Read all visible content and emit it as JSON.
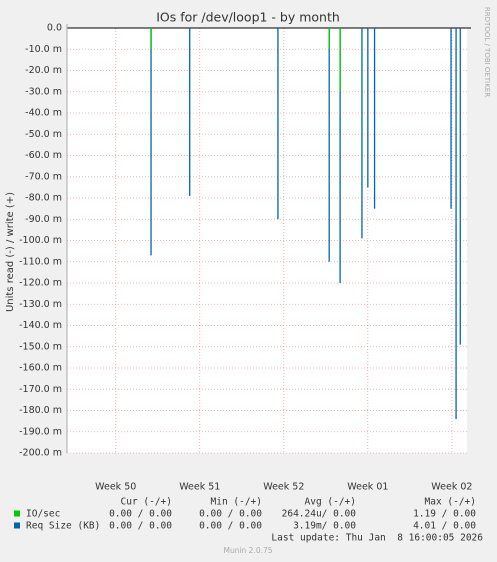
{
  "chart_data": {
    "type": "line",
    "title": "IOs for /dev/loop1 - by month",
    "ylabel": "Units read (-) / write (+)",
    "side_label": "RRDTOOL / TOBI OETIKER",
    "xlim": [
      49.42,
      54.18
    ],
    "xticks": [
      {
        "value": 50,
        "label": "Week 50"
      },
      {
        "value": 51,
        "label": "Week 51"
      },
      {
        "value": 52,
        "label": "Week 52"
      },
      {
        "value": 53,
        "label": "Week 01"
      },
      {
        "value": 54,
        "label": "Week 02"
      }
    ],
    "ylim": [
      -0.2,
      0
    ],
    "yticks": [
      {
        "value": 0,
        "label": "0.0"
      },
      {
        "value": -0.01,
        "label": "-10.0 m"
      },
      {
        "value": -0.02,
        "label": "-20.0 m"
      },
      {
        "value": -0.03,
        "label": "-30.0 m"
      },
      {
        "value": -0.04,
        "label": "-40.0 m"
      },
      {
        "value": -0.05,
        "label": "-50.0 m"
      },
      {
        "value": -0.06,
        "label": "-60.0 m"
      },
      {
        "value": -0.07,
        "label": "-70.0 m"
      },
      {
        "value": -0.08,
        "label": "-80.0 m"
      },
      {
        "value": -0.09,
        "label": "-90.0 m"
      },
      {
        "value": -0.1,
        "label": "-100.0 m"
      },
      {
        "value": -0.11,
        "label": "-110.0 m"
      },
      {
        "value": -0.12,
        "label": "-120.0 m"
      },
      {
        "value": -0.13,
        "label": "-130.0 m"
      },
      {
        "value": -0.14,
        "label": "-140.0 m"
      },
      {
        "value": -0.15,
        "label": "-150.0 m"
      },
      {
        "value": -0.16,
        "label": "-160.0 m"
      },
      {
        "value": -0.17,
        "label": "-170.0 m"
      },
      {
        "value": -0.18,
        "label": "-180.0 m"
      },
      {
        "value": -0.19,
        "label": "-190.0 m"
      },
      {
        "value": -0.2,
        "label": "-200.0 m"
      }
    ],
    "grid": true,
    "stat_headers": [
      "Cur (-/+)",
      "Min (-/+)",
      "Avg (-/+)",
      "Max (-/+)"
    ],
    "series": [
      {
        "name": "IO/sec",
        "color": "#00cc00",
        "x": [
          50.42,
          52.54,
          52.67
        ],
        "values": [
          -0.01,
          -0.01,
          -0.03
        ],
        "stats": [
          "0.00 / 0.00",
          "0.00 / 0.00",
          "264.24u/ 0.00",
          "1.19 / 0.00"
        ]
      },
      {
        "name": "Req Size (KB)",
        "color": "#0066b3",
        "x": [
          50.42,
          50.88,
          51.93,
          52.54,
          52.67,
          52.93,
          53.0,
          53.08,
          53.99,
          54.05,
          54.1
        ],
        "values": [
          -0.107,
          -0.079,
          -0.09,
          -0.11,
          -0.12,
          -0.099,
          -0.075,
          -0.085,
          -0.085,
          -0.184,
          -0.149
        ],
        "stats": [
          "0.00 / 0.00",
          "0.00 / 0.00",
          "3.19m/ 0.00",
          "4.01 / 0.00"
        ]
      }
    ],
    "last_update": "Last update: Thu Jan  8 16:00:05 2026",
    "footer": "Munin 2.0.75"
  }
}
